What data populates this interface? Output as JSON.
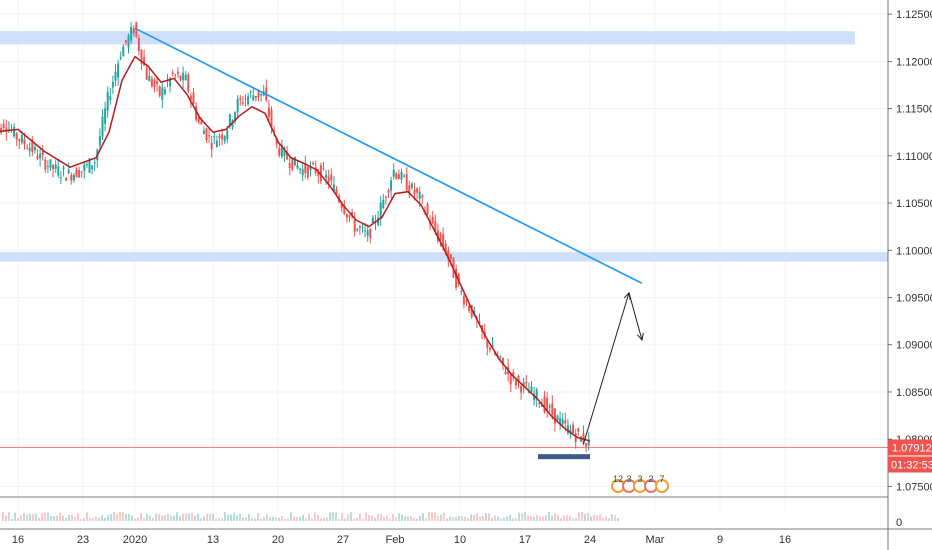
{
  "chart_data": {
    "type": "line",
    "y_axis": {
      "ylim": [
        1.0725,
        1.1265
      ],
      "tick_labels": [
        "1.12500",
        "1.12000",
        "1.11500",
        "1.11000",
        "1.10500",
        "1.10000",
        "1.09500",
        "1.09000",
        "1.08500",
        "1.08000",
        "1.07500"
      ],
      "tick_values": [
        1.125,
        1.12,
        1.115,
        1.11,
        1.105,
        1.1,
        1.095,
        1.09,
        1.085,
        1.08,
        1.075
      ]
    },
    "x_axis": {
      "tick_labels": [
        "16",
        "23",
        "2020",
        "13",
        "20",
        "27",
        "Feb",
        "10",
        "17",
        "24",
        "Mar",
        "9",
        "16"
      ],
      "tick_positions": [
        2.0,
        7.0,
        11.0,
        17.0,
        22.0,
        27.0,
        31.0,
        36.0,
        41.0,
        46.0,
        51.0,
        56.0,
        61.0
      ]
    },
    "price_series": [
      [
        0,
        1.1115
      ],
      [
        1,
        1.1135
      ],
      [
        2,
        1.112
      ],
      [
        3,
        1.111
      ],
      [
        4,
        1.1095
      ],
      [
        5,
        1.1085
      ],
      [
        6,
        1.108
      ],
      [
        7,
        1.1085
      ],
      [
        8,
        1.1095
      ],
      [
        9,
        1.116
      ],
      [
        10,
        1.121
      ],
      [
        11,
        1.1235
      ],
      [
        12,
        1.1185
      ],
      [
        13,
        1.1165
      ],
      [
        14,
        1.1185
      ],
      [
        15,
        1.118
      ],
      [
        16,
        1.1135
      ],
      [
        17,
        1.1115
      ],
      [
        18,
        1.1125
      ],
      [
        19,
        1.1155
      ],
      [
        20,
        1.1165
      ],
      [
        21,
        1.1165
      ],
      [
        22,
        1.111
      ],
      [
        23,
        1.1095
      ],
      [
        24,
        1.1085
      ],
      [
        25,
        1.1085
      ],
      [
        26,
        1.1075
      ],
      [
        27,
        1.105
      ],
      [
        28,
        1.1025
      ],
      [
        29,
        1.1015
      ],
      [
        30,
        1.1045
      ],
      [
        31,
        1.1085
      ],
      [
        32,
        1.107
      ],
      [
        33,
        1.1055
      ],
      [
        34,
        1.1025
      ],
      [
        35,
        1.1
      ],
      [
        36,
        1.096
      ],
      [
        37,
        1.0935
      ],
      [
        38,
        1.0905
      ],
      [
        39,
        1.0885
      ],
      [
        40,
        1.0865
      ],
      [
        41,
        1.0855
      ],
      [
        42,
        1.0845
      ],
      [
        43,
        1.083
      ],
      [
        44,
        1.0815
      ],
      [
        45,
        1.0805
      ],
      [
        46,
        1.0795
      ]
    ],
    "ma_series": [
      [
        0,
        1.1125
      ],
      [
        2,
        1.1128
      ],
      [
        4,
        1.1105
      ],
      [
        6,
        1.1088
      ],
      [
        8,
        1.1098
      ],
      [
        9,
        1.1125
      ],
      [
        10,
        1.118
      ],
      [
        11,
        1.1205
      ],
      [
        12,
        1.1195
      ],
      [
        13,
        1.1178
      ],
      [
        14,
        1.1182
      ],
      [
        15,
        1.1165
      ],
      [
        16,
        1.114
      ],
      [
        17,
        1.1125
      ],
      [
        18,
        1.1128
      ],
      [
        19,
        1.1142
      ],
      [
        20,
        1.1152
      ],
      [
        21,
        1.1145
      ],
      [
        22,
        1.1115
      ],
      [
        23,
        1.1098
      ],
      [
        24,
        1.1092
      ],
      [
        25,
        1.1085
      ],
      [
        26,
        1.1068
      ],
      [
        27,
        1.1048
      ],
      [
        28,
        1.1032
      ],
      [
        29,
        1.1025
      ],
      [
        30,
        1.1035
      ],
      [
        31,
        1.106
      ],
      [
        32,
        1.1062
      ],
      [
        33,
        1.1048
      ],
      [
        34,
        1.1022
      ],
      [
        35,
        1.0995
      ],
      [
        36,
        1.0965
      ],
      [
        37,
        1.0935
      ],
      [
        38,
        1.0908
      ],
      [
        39,
        1.0885
      ],
      [
        40,
        1.0868
      ],
      [
        41,
        1.0855
      ],
      [
        42,
        1.0842
      ],
      [
        43,
        1.0825
      ],
      [
        44,
        1.0812
      ],
      [
        45,
        1.0802
      ],
      [
        46,
        1.0798
      ]
    ],
    "trendline": [
      [
        11,
        1.1235
      ],
      [
        50,
        1.0965
      ]
    ],
    "projection_up": [
      [
        45.5,
        1.0795
      ],
      [
        49,
        1.0955
      ]
    ],
    "projection_down": [
      [
        49,
        1.0955
      ],
      [
        50,
        1.0905
      ]
    ],
    "resistance_zone": [
      1.1218,
      1.1232
    ],
    "support_zone": [
      1.0988,
      1.0998
    ],
    "support_marker": {
      "x_range": [
        42,
        46
      ],
      "y": 1.0782
    },
    "current_price": 1.07912,
    "current_price_label": "1.07912",
    "countdown": "01:32:53",
    "bottom_axis_zero": "0",
    "event_icons": [
      "12",
      "3",
      "3",
      "2",
      "7"
    ],
    "colors": {
      "candle_up": "#26a69a",
      "candle_down": "#ef5350",
      "ma": "#b71c1c",
      "trendline": "#2196f3",
      "zone": "#cfe0fc",
      "marker": "#3d5b8a",
      "price_label": "#ef5350",
      "projection": "#222222"
    }
  }
}
